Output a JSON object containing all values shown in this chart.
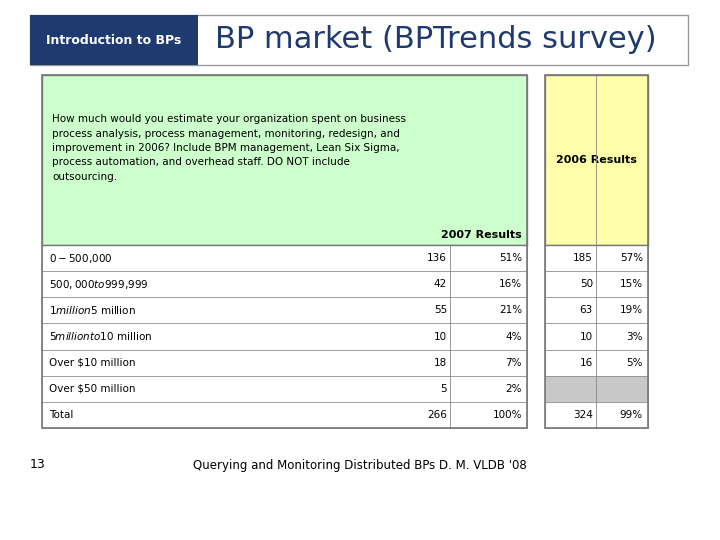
{
  "header_box_color": "#1e3a6e",
  "header_label": "Introduction to BPs",
  "header_label_color": "#ffffff",
  "title_text": "BP market (BPTrends survey)",
  "title_color": "#1e3a6e",
  "background_color": "#ffffff",
  "question_text": "How much would you estimate your organization spent on business\nprocess analysis, process management, monitoring, redesign, and\nimprovement in 2006? Include BPM management, Lean Six Sigma,\nprocess automation, and overhead staff. DO NOT include\noutsourcing.",
  "question_bg": "#ccffcc",
  "col_header_2007": "2007 Results",
  "col_header_2006": "2006 Results",
  "col_header_2006_bg": "#ffffaa",
  "rows": [
    {
      "label": "$0-$500,000",
      "v2007": "136",
      "p2007": "51%",
      "v2006": "185",
      "p2006": "57%",
      "bg": "#ffffff",
      "bg06": "#ffffff"
    },
    {
      "label": "$500,000 to $999,999",
      "v2007": "42",
      "p2007": "16%",
      "v2006": "50",
      "p2006": "15%",
      "bg": "#ffffff",
      "bg06": "#ffffff"
    },
    {
      "label": "$1 million $5 million",
      "v2007": "55",
      "p2007": "21%",
      "v2006": "63",
      "p2006": "19%",
      "bg": "#ffffff",
      "bg06": "#ffffff"
    },
    {
      "label": "$5 million to $10 million",
      "v2007": "10",
      "p2007": "4%",
      "v2006": "10",
      "p2006": "3%",
      "bg": "#ffffff",
      "bg06": "#ffffff"
    },
    {
      "label": "Over $10 million",
      "v2007": "18",
      "p2007": "7%",
      "v2006": "16",
      "p2006": "5%",
      "bg": "#ffffff",
      "bg06": "#ffffff"
    },
    {
      "label": "Over $50 million",
      "v2007": "5",
      "p2007": "2%",
      "v2006": "",
      "p2006": "",
      "bg": "#ffffff",
      "bg06": "#c8c8c8"
    },
    {
      "label": "Total",
      "v2007": "266",
      "p2007": "100%",
      "v2006": "324",
      "p2006": "99%",
      "bg": "#ffffff",
      "bg06": "#ffffff"
    }
  ],
  "footer_num": "13",
  "footer_text": "Querying and Monitoring Distributed BPs D. M. VLDB '08"
}
